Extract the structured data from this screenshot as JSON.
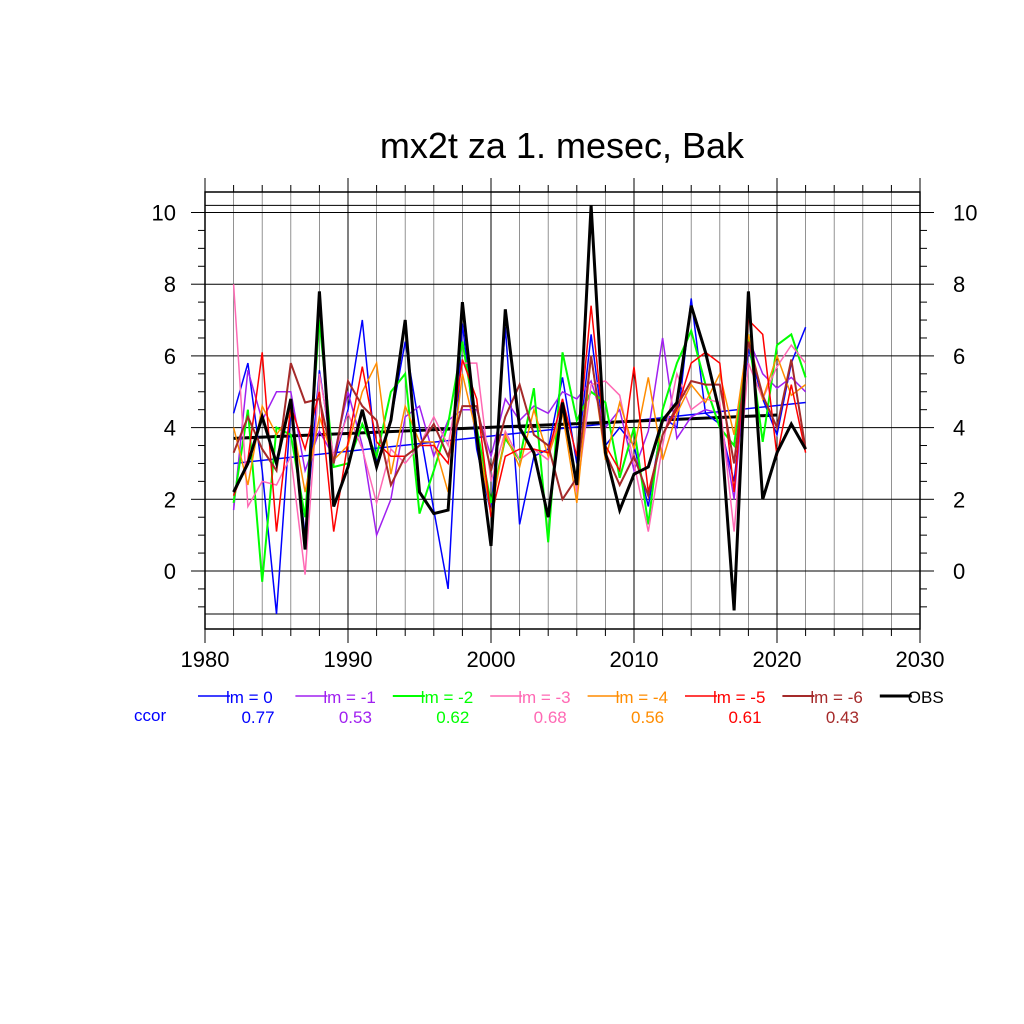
{
  "chart_data": {
    "type": "line",
    "title": "mx2t za 1. mesec, Bak",
    "xlabel": "",
    "ylabel": "",
    "xlim": [
      1980,
      2030
    ],
    "ylim": [
      -1.2,
      10.2
    ],
    "xticks": [
      1980,
      1990,
      2000,
      2010,
      2020,
      2030
    ],
    "yticks": [
      0,
      2,
      4,
      6,
      8,
      10
    ],
    "grid": true,
    "legend_position": "bottom",
    "ccor_label": "ccor",
    "x": [
      1982,
      1983,
      1984,
      1985,
      1986,
      1987,
      1988,
      1989,
      1990,
      1991,
      1992,
      1993,
      1994,
      1995,
      1996,
      1997,
      1998,
      1999,
      2000,
      2001,
      2002,
      2003,
      2004,
      2005,
      2006,
      2007,
      2008,
      2009,
      2010,
      2011,
      2012,
      2013,
      2014,
      2015,
      2016,
      2017,
      2018,
      2019,
      2020,
      2021,
      2022
    ],
    "series": [
      {
        "name": "lm = 0",
        "ccor": "0.77",
        "color": "#0000ff",
        "width": 1.5,
        "values": [
          4.4,
          5.8,
          2.8,
          -1.2,
          4.5,
          1.0,
          5.6,
          3.0,
          4.5,
          7.0,
          3.0,
          4.2,
          6.4,
          4.0,
          1.7,
          -0.5,
          6.9,
          3.4,
          1.6,
          6.8,
          1.3,
          3.2,
          3.4,
          5.4,
          3.0,
          6.6,
          3.5,
          4.0,
          3.5,
          1.8,
          4.3,
          4.0,
          7.6,
          4.4,
          4.1,
          2.5,
          6.2,
          4.8,
          3.8,
          5.8,
          6.8
        ]
      },
      {
        "name": "lm = -1",
        "ccor": "0.53",
        "color": "#a020f0",
        "width": 1.5,
        "values": [
          1.7,
          5.6,
          4.2,
          5.0,
          5.0,
          2.8,
          3.9,
          3.2,
          5.0,
          3.5,
          1.0,
          2.0,
          4.3,
          4.6,
          3.2,
          4.2,
          4.5,
          4.5,
          3.2,
          4.8,
          4.2,
          4.6,
          4.4,
          5.0,
          4.8,
          5.3,
          4.0,
          4.5,
          2.8,
          3.9,
          6.5,
          3.7,
          4.3,
          4.5,
          4.4,
          2.0,
          6.5,
          5.5,
          5.1,
          5.4,
          5.0
        ]
      },
      {
        "name": "lm = -2",
        "ccor": "0.62",
        "color": "#00ff00",
        "width": 2,
        "values": [
          1.9,
          4.5,
          -0.3,
          4.0,
          3.8,
          1.5,
          7.0,
          2.9,
          3.0,
          4.1,
          3.2,
          5.0,
          5.5,
          1.6,
          2.8,
          4.1,
          6.4,
          4.0,
          1.9,
          3.7,
          3.1,
          5.1,
          0.8,
          6.1,
          4.2,
          5.0,
          4.7,
          2.6,
          4.0,
          1.3,
          4.5,
          5.8,
          6.7,
          5.2,
          4.0,
          3.5,
          6.6,
          3.6,
          6.3,
          6.6,
          5.4
        ]
      },
      {
        "name": "lm = -3",
        "ccor": "0.68",
        "color": "#ff69b4",
        "width": 1.5,
        "values": [
          8.0,
          1.8,
          2.5,
          2.4,
          3.2,
          -0.1,
          5.5,
          3.2,
          4.4,
          3.4,
          1.9,
          3.4,
          3.0,
          3.5,
          4.3,
          3.5,
          5.8,
          5.8,
          2.5,
          3.9,
          3.1,
          3.4,
          3.1,
          4.8,
          2.2,
          5.2,
          5.3,
          4.9,
          3.0,
          1.1,
          3.5,
          5.5,
          4.5,
          4.8,
          4.7,
          1.1,
          5.8,
          4.8,
          5.7,
          6.3,
          5.8
        ]
      },
      {
        "name": "lm = -4",
        "ccor": "0.56",
        "color": "#ff8c00",
        "width": 1.5,
        "values": [
          4.0,
          2.4,
          4.6,
          3.8,
          4.4,
          2.2,
          4.3,
          3.1,
          3.5,
          5.0,
          5.8,
          2.7,
          4.6,
          3.6,
          3.6,
          2.2,
          5.5,
          3.8,
          1.6,
          3.8,
          2.9,
          4.5,
          3.2,
          4.4,
          1.9,
          6.0,
          3.1,
          4.7,
          3.4,
          5.4,
          3.1,
          4.4,
          5.2,
          4.7,
          5.5,
          3.8,
          6.6,
          4.8,
          6.0,
          4.9,
          5.2
        ]
      },
      {
        "name": "lm = -5",
        "ccor": "0.61",
        "color": "#ff0000",
        "width": 1.5,
        "values": [
          2.1,
          3.1,
          6.1,
          1.1,
          4.6,
          3.4,
          5.0,
          1.1,
          3.6,
          5.7,
          3.6,
          3.2,
          3.2,
          3.5,
          3.5,
          3.0,
          5.9,
          4.8,
          1.5,
          3.2,
          3.4,
          3.4,
          3.3,
          4.8,
          3.2,
          7.4,
          3.5,
          2.8,
          5.7,
          2.2,
          3.8,
          4.5,
          5.8,
          6.1,
          5.8,
          2.2,
          7.0,
          6.6,
          3.2,
          5.2,
          3.3
        ]
      },
      {
        "name": "lm = -6",
        "ccor": "0.43",
        "color": "#a52a2a",
        "width": 2,
        "values": [
          3.3,
          4.3,
          3.4,
          2.8,
          5.8,
          4.7,
          4.8,
          3.0,
          5.3,
          4.6,
          4.2,
          2.4,
          3.2,
          3.5,
          4.1,
          3.2,
          4.6,
          4.6,
          2.8,
          4.3,
          5.2,
          3.8,
          3.5,
          2.0,
          2.6,
          6.0,
          3.3,
          2.4,
          3.2,
          2.1,
          3.8,
          4.6,
          5.3,
          5.2,
          5.2,
          3.0,
          6.4,
          4.9,
          4.0,
          5.9,
          3.4
        ]
      },
      {
        "name": "OBS",
        "ccor": "",
        "color": "#000000",
        "width": 3,
        "values": [
          2.2,
          3.0,
          4.3,
          3.0,
          4.8,
          0.6,
          7.8,
          1.8,
          2.9,
          4.5,
          2.9,
          4.2,
          7.0,
          2.2,
          1.6,
          1.7,
          7.5,
          3.8,
          0.7,
          7.3,
          4.0,
          3.3,
          1.5,
          4.7,
          2.4,
          10.2,
          3.3,
          1.7,
          2.7,
          2.9,
          4.2,
          4.7,
          7.4,
          6.1,
          4.4,
          -1.1,
          7.8,
          2.0,
          3.3,
          4.1,
          3.4
        ]
      }
    ],
    "trend_lines": [
      {
        "series": "lm = 0",
        "color": "#0000ff",
        "width": 1.5,
        "x": [
          1982,
          2022
        ],
        "y": [
          3.0,
          4.7
        ]
      },
      {
        "series": "OBS",
        "color": "#000000",
        "width": 3,
        "x": [
          1982,
          2020
        ],
        "y": [
          3.7,
          4.35
        ]
      }
    ]
  }
}
